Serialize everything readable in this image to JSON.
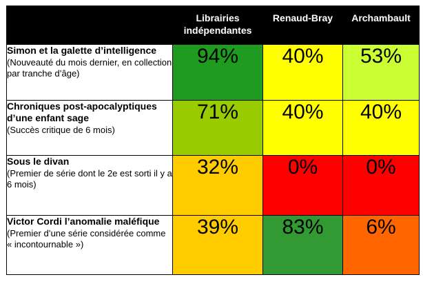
{
  "chart_data": {
    "type": "table",
    "columns": [
      "Librairies indépendantes",
      "Renaud-Bray",
      "Archambault"
    ],
    "rows": [
      {
        "title": "Simon et la galette d’intelligence",
        "subtitle": "(Nouveauté du mois dernier, en collection par tranche d’âge)",
        "values": [
          94,
          40,
          53
        ],
        "labels": [
          "94%",
          "40%",
          "53%"
        ],
        "colors": [
          "#1f9c1f",
          "#ffff00",
          "#ccff33"
        ]
      },
      {
        "title": "Chroniques post-apocalyptiques d’une enfant sage",
        "subtitle": "(Succès critique de 6 mois)",
        "values": [
          71,
          40,
          40
        ],
        "labels": [
          "71%",
          "40%",
          "40%"
        ],
        "colors": [
          "#99cc00",
          "#ffff00",
          "#ffff00"
        ]
      },
      {
        "title": "Sous le divan",
        "subtitle": "(Premier de série dont le 2e est sorti il y a 6 mois)",
        "values": [
          32,
          0,
          0
        ],
        "labels": [
          "32%",
          "0%",
          "0%"
        ],
        "colors": [
          "#ffcc00",
          "#ff0000",
          "#ff0000"
        ]
      },
      {
        "title": "Victor Cordi l’anomalie maléfique",
        "subtitle": "(Premier d’une série considérée comme « incontournable »)",
        "values": [
          39,
          83,
          6
        ],
        "labels": [
          "39%",
          "83%",
          "6%"
        ],
        "colors": [
          "#ffcc00",
          "#339933",
          "#ff6600"
        ]
      }
    ]
  }
}
